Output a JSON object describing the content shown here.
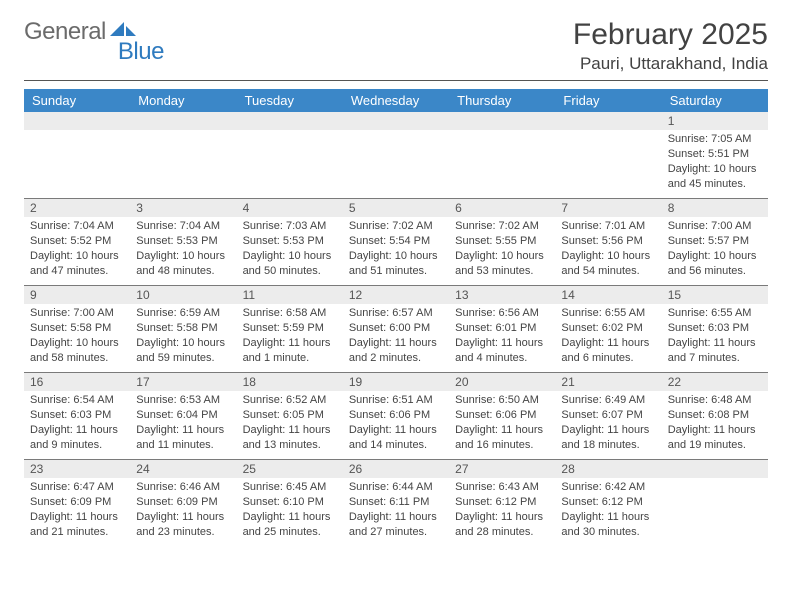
{
  "logo": {
    "text1": "General",
    "text2": "Blue"
  },
  "title": "February 2025",
  "location": "Pauri, Uttarakhand, India",
  "colors": {
    "header_bg": "#3b87c8",
    "header_text": "#ffffff",
    "daynum_bg": "#ececec",
    "text": "#444444",
    "rule": "#7a7a7a"
  },
  "dayNames": [
    "Sunday",
    "Monday",
    "Tuesday",
    "Wednesday",
    "Thursday",
    "Friday",
    "Saturday"
  ],
  "weeks": [
    [
      {
        "n": "",
        "sr": "",
        "ss": "",
        "dl": ""
      },
      {
        "n": "",
        "sr": "",
        "ss": "",
        "dl": ""
      },
      {
        "n": "",
        "sr": "",
        "ss": "",
        "dl": ""
      },
      {
        "n": "",
        "sr": "",
        "ss": "",
        "dl": ""
      },
      {
        "n": "",
        "sr": "",
        "ss": "",
        "dl": ""
      },
      {
        "n": "",
        "sr": "",
        "ss": "",
        "dl": ""
      },
      {
        "n": "1",
        "sr": "Sunrise: 7:05 AM",
        "ss": "Sunset: 5:51 PM",
        "dl": "Daylight: 10 hours and 45 minutes."
      }
    ],
    [
      {
        "n": "2",
        "sr": "Sunrise: 7:04 AM",
        "ss": "Sunset: 5:52 PM",
        "dl": "Daylight: 10 hours and 47 minutes."
      },
      {
        "n": "3",
        "sr": "Sunrise: 7:04 AM",
        "ss": "Sunset: 5:53 PM",
        "dl": "Daylight: 10 hours and 48 minutes."
      },
      {
        "n": "4",
        "sr": "Sunrise: 7:03 AM",
        "ss": "Sunset: 5:53 PM",
        "dl": "Daylight: 10 hours and 50 minutes."
      },
      {
        "n": "5",
        "sr": "Sunrise: 7:02 AM",
        "ss": "Sunset: 5:54 PM",
        "dl": "Daylight: 10 hours and 51 minutes."
      },
      {
        "n": "6",
        "sr": "Sunrise: 7:02 AM",
        "ss": "Sunset: 5:55 PM",
        "dl": "Daylight: 10 hours and 53 minutes."
      },
      {
        "n": "7",
        "sr": "Sunrise: 7:01 AM",
        "ss": "Sunset: 5:56 PM",
        "dl": "Daylight: 10 hours and 54 minutes."
      },
      {
        "n": "8",
        "sr": "Sunrise: 7:00 AM",
        "ss": "Sunset: 5:57 PM",
        "dl": "Daylight: 10 hours and 56 minutes."
      }
    ],
    [
      {
        "n": "9",
        "sr": "Sunrise: 7:00 AM",
        "ss": "Sunset: 5:58 PM",
        "dl": "Daylight: 10 hours and 58 minutes."
      },
      {
        "n": "10",
        "sr": "Sunrise: 6:59 AM",
        "ss": "Sunset: 5:58 PM",
        "dl": "Daylight: 10 hours and 59 minutes."
      },
      {
        "n": "11",
        "sr": "Sunrise: 6:58 AM",
        "ss": "Sunset: 5:59 PM",
        "dl": "Daylight: 11 hours and 1 minute."
      },
      {
        "n": "12",
        "sr": "Sunrise: 6:57 AM",
        "ss": "Sunset: 6:00 PM",
        "dl": "Daylight: 11 hours and 2 minutes."
      },
      {
        "n": "13",
        "sr": "Sunrise: 6:56 AM",
        "ss": "Sunset: 6:01 PM",
        "dl": "Daylight: 11 hours and 4 minutes."
      },
      {
        "n": "14",
        "sr": "Sunrise: 6:55 AM",
        "ss": "Sunset: 6:02 PM",
        "dl": "Daylight: 11 hours and 6 minutes."
      },
      {
        "n": "15",
        "sr": "Sunrise: 6:55 AM",
        "ss": "Sunset: 6:03 PM",
        "dl": "Daylight: 11 hours and 7 minutes."
      }
    ],
    [
      {
        "n": "16",
        "sr": "Sunrise: 6:54 AM",
        "ss": "Sunset: 6:03 PM",
        "dl": "Daylight: 11 hours and 9 minutes."
      },
      {
        "n": "17",
        "sr": "Sunrise: 6:53 AM",
        "ss": "Sunset: 6:04 PM",
        "dl": "Daylight: 11 hours and 11 minutes."
      },
      {
        "n": "18",
        "sr": "Sunrise: 6:52 AM",
        "ss": "Sunset: 6:05 PM",
        "dl": "Daylight: 11 hours and 13 minutes."
      },
      {
        "n": "19",
        "sr": "Sunrise: 6:51 AM",
        "ss": "Sunset: 6:06 PM",
        "dl": "Daylight: 11 hours and 14 minutes."
      },
      {
        "n": "20",
        "sr": "Sunrise: 6:50 AM",
        "ss": "Sunset: 6:06 PM",
        "dl": "Daylight: 11 hours and 16 minutes."
      },
      {
        "n": "21",
        "sr": "Sunrise: 6:49 AM",
        "ss": "Sunset: 6:07 PM",
        "dl": "Daylight: 11 hours and 18 minutes."
      },
      {
        "n": "22",
        "sr": "Sunrise: 6:48 AM",
        "ss": "Sunset: 6:08 PM",
        "dl": "Daylight: 11 hours and 19 minutes."
      }
    ],
    [
      {
        "n": "23",
        "sr": "Sunrise: 6:47 AM",
        "ss": "Sunset: 6:09 PM",
        "dl": "Daylight: 11 hours and 21 minutes."
      },
      {
        "n": "24",
        "sr": "Sunrise: 6:46 AM",
        "ss": "Sunset: 6:09 PM",
        "dl": "Daylight: 11 hours and 23 minutes."
      },
      {
        "n": "25",
        "sr": "Sunrise: 6:45 AM",
        "ss": "Sunset: 6:10 PM",
        "dl": "Daylight: 11 hours and 25 minutes."
      },
      {
        "n": "26",
        "sr": "Sunrise: 6:44 AM",
        "ss": "Sunset: 6:11 PM",
        "dl": "Daylight: 11 hours and 27 minutes."
      },
      {
        "n": "27",
        "sr": "Sunrise: 6:43 AM",
        "ss": "Sunset: 6:12 PM",
        "dl": "Daylight: 11 hours and 28 minutes."
      },
      {
        "n": "28",
        "sr": "Sunrise: 6:42 AM",
        "ss": "Sunset: 6:12 PM",
        "dl": "Daylight: 11 hours and 30 minutes."
      },
      {
        "n": "",
        "sr": "",
        "ss": "",
        "dl": ""
      }
    ]
  ]
}
